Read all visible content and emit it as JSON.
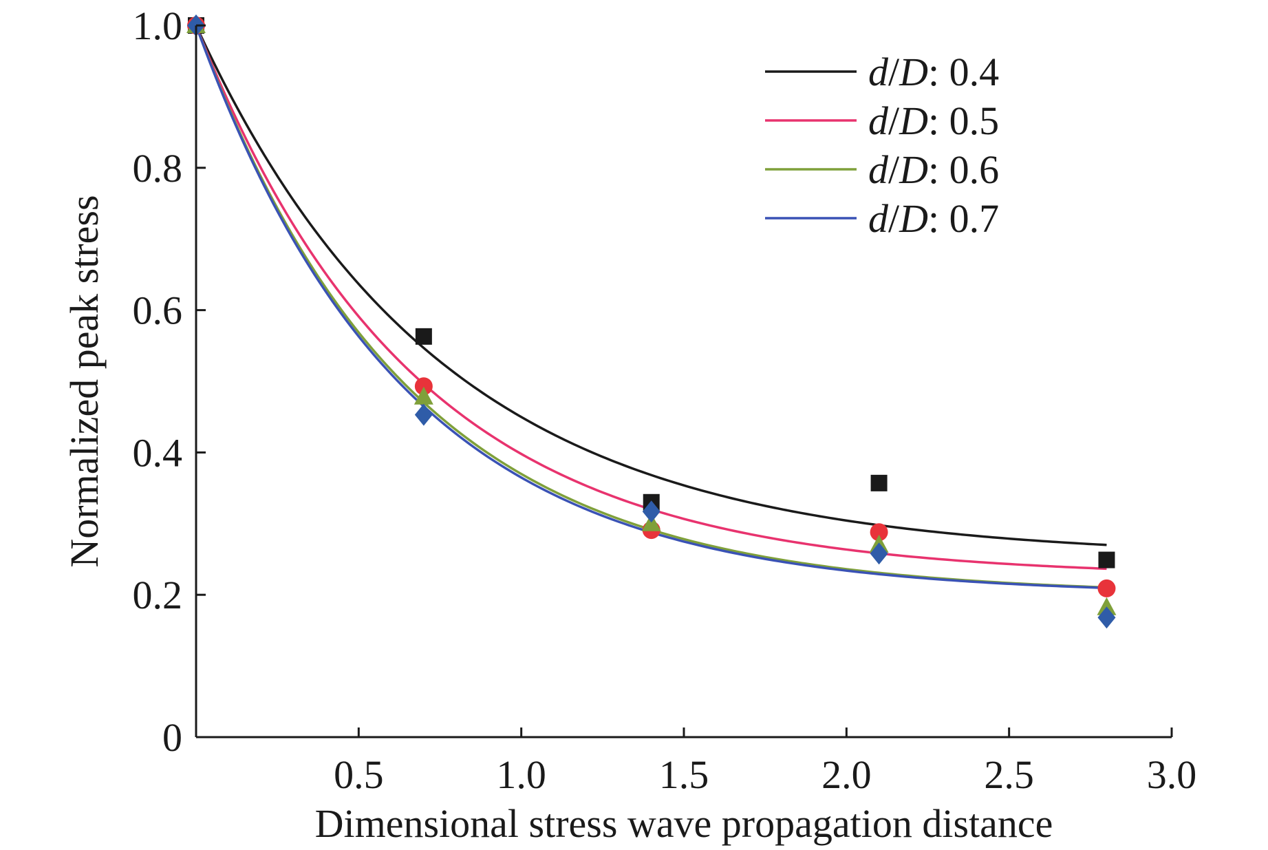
{
  "chart_data": {
    "type": "scatter",
    "xlabel": "Dimensional stress wave propagation distance",
    "ylabel": "Normalized peak stress",
    "xlim": [
      0,
      3.0
    ],
    "ylim": [
      0,
      1.0
    ],
    "x_ticks": [
      {
        "value": 0.5,
        "label": "0.5"
      },
      {
        "value": 1.0,
        "label": "1.0"
      },
      {
        "value": 1.5,
        "label": "1.5"
      },
      {
        "value": 2.0,
        "label": "2.0"
      },
      {
        "value": 2.5,
        "label": "2.5"
      },
      {
        "value": 3.0,
        "label": "3.0"
      }
    ],
    "y_ticks": [
      {
        "value": 0,
        "label": "0"
      },
      {
        "value": 0.2,
        "label": "0.2"
      },
      {
        "value": 0.4,
        "label": "0.4"
      },
      {
        "value": 0.6,
        "label": "0.6"
      },
      {
        "value": 0.8,
        "label": "0.8"
      },
      {
        "value": 1.0,
        "label": "1.0"
      }
    ],
    "grid": false,
    "legend_position": "top-right",
    "legend_var": "d/D",
    "x": [
      0,
      0.7,
      1.4,
      2.1,
      2.8
    ],
    "series": [
      {
        "name": "d/D: 0.4",
        "legend_value": ": 0.4",
        "color": "#1a1a1a",
        "marker": "square",
        "values": [
          1.0,
          0.563,
          0.33,
          0.357,
          0.249
        ],
        "fit": {
          "a": 0.748,
          "b": 1.33,
          "c": 0.252
        }
      },
      {
        "name": "d/D: 0.5",
        "legend_value": ": 0.5",
        "color": "#e8336e",
        "marker": "circle",
        "marker_color": "#e8333a",
        "values": [
          1.0,
          0.493,
          0.291,
          0.288,
          0.209
        ],
        "fit": {
          "a": 0.775,
          "b": 1.5,
          "c": 0.225
        }
      },
      {
        "name": "d/D: 0.6",
        "legend_value": ": 0.6",
        "color": "#7fa03a",
        "marker": "triangle",
        "values": [
          1.0,
          0.478,
          0.3,
          0.27,
          0.182
        ],
        "fit": {
          "a": 0.8,
          "b": 1.55,
          "c": 0.2
        }
      },
      {
        "name": "d/D: 0.7",
        "legend_value": ": 0.7",
        "color": "#3a52b5",
        "marker": "diamond",
        "marker_color": "#2f5ca8",
        "values": [
          1.0,
          0.453,
          0.317,
          0.258,
          0.168
        ],
        "fit": {
          "a": 0.8,
          "b": 1.58,
          "c": 0.2
        }
      }
    ]
  }
}
